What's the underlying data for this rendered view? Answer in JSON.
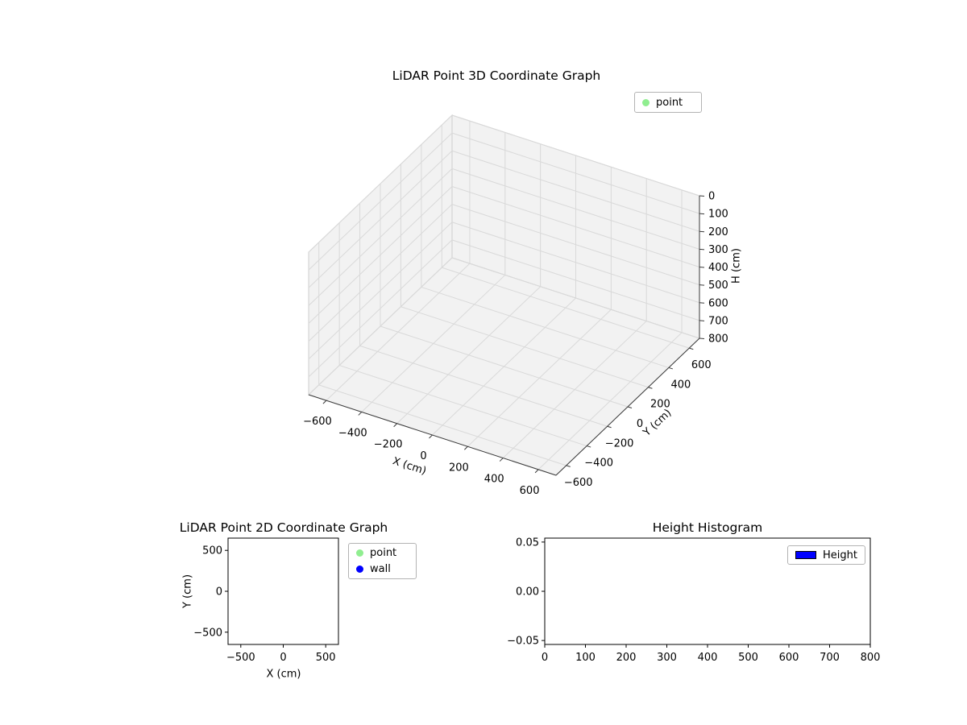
{
  "figure": {
    "background": "#ffffff"
  },
  "chart_data": [
    {
      "type": "scatter3d",
      "title": "LiDAR Point 3D Coordinate Graph",
      "xlabel": "X (cm)",
      "ylabel": "Y (cm)",
      "zlabel": "H (cm)",
      "xlim": [
        -700,
        700
      ],
      "ylim": [
        -700,
        700
      ],
      "zlim": [
        0,
        800
      ],
      "z_axis_inverted": true,
      "x_ticks": [
        -600,
        -400,
        -200,
        0,
        200,
        400,
        600
      ],
      "y_ticks": [
        -600,
        -400,
        -200,
        0,
        200,
        400,
        600
      ],
      "z_ticks": [
        0,
        100,
        200,
        300,
        400,
        500,
        600,
        700,
        800
      ],
      "legend": [
        {
          "label": "point",
          "marker": "dot",
          "color": "#90ee90"
        }
      ],
      "series": [
        {
          "name": "point",
          "points": []
        }
      ],
      "pane_color": "#f2f2f2",
      "grid_color": "#d9d9d9",
      "axis_line_color": "#3a3a3a",
      "grid_on": true
    },
    {
      "type": "scatter",
      "title": "LiDAR Point 2D Coordinate Graph",
      "xlabel": "X (cm)",
      "ylabel": "Y (cm)",
      "xlim": [
        -650,
        650
      ],
      "ylim": [
        -650,
        650
      ],
      "x_ticks": [
        -500,
        0,
        500
      ],
      "y_ticks": [
        500,
        0,
        -500
      ],
      "legend": [
        {
          "label": "point",
          "marker": "dot",
          "color": "#90ee90"
        },
        {
          "label": "wall",
          "marker": "dot",
          "color": "#0000ff"
        }
      ],
      "series": [
        {
          "name": "point",
          "points": []
        },
        {
          "name": "wall",
          "points": []
        }
      ],
      "grid_on": false
    },
    {
      "type": "bar",
      "title": "Height Histogram",
      "xlabel": "",
      "ylabel": "",
      "xlim": [
        0,
        800
      ],
      "ylim": [
        -0.054,
        0.054
      ],
      "x_ticks": [
        0,
        100,
        200,
        300,
        400,
        500,
        600,
        700,
        800
      ],
      "y_ticks": [
        0.05,
        0.0,
        -0.05
      ],
      "y_tick_labels": [
        "0.05",
        "0.00",
        "−0.05"
      ],
      "legend": [
        {
          "label": "Height",
          "marker": "rect",
          "color": "#0000ff"
        }
      ],
      "values": [],
      "grid_on": false
    }
  ]
}
